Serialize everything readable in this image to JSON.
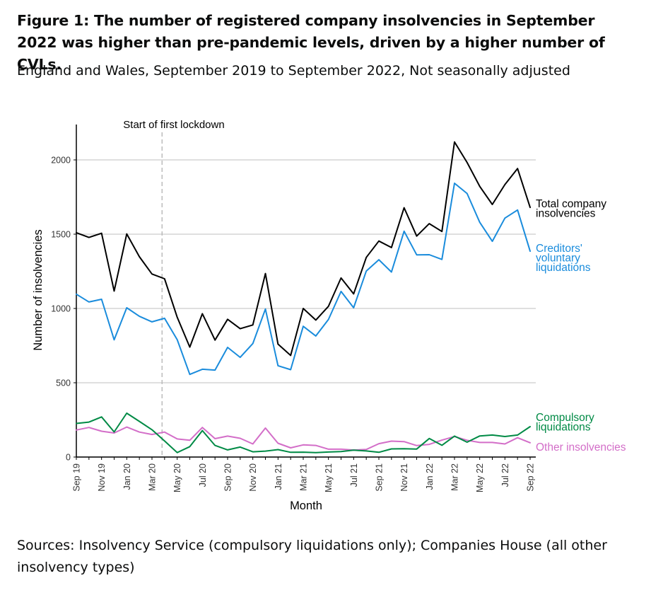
{
  "figure": {
    "title": "Figure 1: The number of registered company insolvencies in September 2022 was higher than pre-pandemic levels, driven by a higher number of CVLs.",
    "subtitle": "England and Wales, September 2019 to September 2022, Not seasonally adjusted",
    "source": "Sources: Insolvency Service (compulsory liquidations only); Companies House (all other insolvency types)"
  },
  "chart_data": {
    "type": "line",
    "xlabel": "Month",
    "ylabel": "Number of insolvencies",
    "ylim": [
      0,
      2250
    ],
    "yticks": [
      0,
      500,
      1000,
      1500,
      2000
    ],
    "grid": "horizontal",
    "x": [
      "Sep 19",
      "Oct 19",
      "Nov 19",
      "Dec 19",
      "Jan 20",
      "Feb 20",
      "Mar 20",
      "Apr 20",
      "May 20",
      "Jun 20",
      "Jul 20",
      "Aug 20",
      "Sep 20",
      "Oct 20",
      "Nov 20",
      "Dec 20",
      "Jan 21",
      "Feb 21",
      "Mar 21",
      "Apr 21",
      "May 21",
      "Jun 21",
      "Jul 21",
      "Aug 21",
      "Sep 21",
      "Oct 21",
      "Nov 21",
      "Dec 21",
      "Jan 22",
      "Feb 22",
      "Mar 22",
      "Apr 22",
      "May 22",
      "Jun 22",
      "Jul 22",
      "Aug 22",
      "Sep 22"
    ],
    "xtick_labels": [
      "Sep 19",
      "Nov 19",
      "Jan 20",
      "Mar 20",
      "May 20",
      "Jul 20",
      "Sep 20",
      "Nov 20",
      "Jan 21",
      "Mar 21",
      "May 21",
      "Jul 21",
      "Sep 21",
      "Nov 21",
      "Jan 22",
      "Mar 22",
      "May 22",
      "Jul 22",
      "Sep 22"
    ],
    "annotation": {
      "text": "Start of first lockdown",
      "x": "Mar 20",
      "offset_months": 0.8
    },
    "series": [
      {
        "name": "Total company insolvencies",
        "color": "#000000",
        "values": [
          1510,
          1478,
          1506,
          1117,
          1502,
          1348,
          1232,
          1200,
          941,
          740,
          965,
          787,
          927,
          864,
          889,
          1235,
          760,
          684,
          1000,
          922,
          1015,
          1205,
          1098,
          1344,
          1454,
          1410,
          1678,
          1487,
          1571,
          1518,
          2121,
          1983,
          1822,
          1700,
          1834,
          1942,
          1680
        ]
      },
      {
        "name": "Creditors' voluntary liquidations",
        "color": "#1a8cdc",
        "values": [
          1096,
          1044,
          1062,
          789,
          1005,
          947,
          910,
          934,
          790,
          556,
          591,
          585,
          738,
          671,
          764,
          996,
          615,
          588,
          880,
          815,
          926,
          1115,
          1005,
          1252,
          1328,
          1245,
          1520,
          1361,
          1362,
          1330,
          1843,
          1774,
          1580,
          1452,
          1608,
          1663,
          1385
        ]
      },
      {
        "name": "Compulsory liquidations",
        "color": "#008a45",
        "values": [
          226,
          235,
          270,
          169,
          295,
          240,
          184,
          108,
          30,
          70,
          178,
          78,
          48,
          67,
          35,
          40,
          50,
          32,
          33,
          30,
          34,
          37,
          46,
          41,
          32,
          55,
          56,
          54,
          125,
          79,
          141,
          100,
          142,
          148,
          138,
          148,
          205
        ]
      },
      {
        "name": "Other insolvencies",
        "color": "#d36ec8",
        "values": [
          182,
          199,
          174,
          162,
          202,
          168,
          152,
          168,
          122,
          113,
          199,
          124,
          141,
          126,
          88,
          195,
          93,
          62,
          82,
          78,
          53,
          53,
          47,
          51,
          90,
          107,
          104,
          77,
          85,
          114,
          138,
          113,
          98,
          98,
          88,
          130,
          96
        ]
      }
    ],
    "labels_display": [
      {
        "series": 0,
        "lines": [
          "Total company",
          "insolvencies"
        ]
      },
      {
        "series": 1,
        "lines": [
          "Creditors'",
          "voluntary",
          "liquidations"
        ]
      },
      {
        "series": 2,
        "lines": [
          "Compulsory",
          "liquidations"
        ]
      },
      {
        "series": 3,
        "lines": [
          "Other insolvencies"
        ]
      }
    ],
    "colors": {
      "grid": "#cccccc",
      "axis": "#000000",
      "annotation_line": "#b8b8b8"
    }
  }
}
